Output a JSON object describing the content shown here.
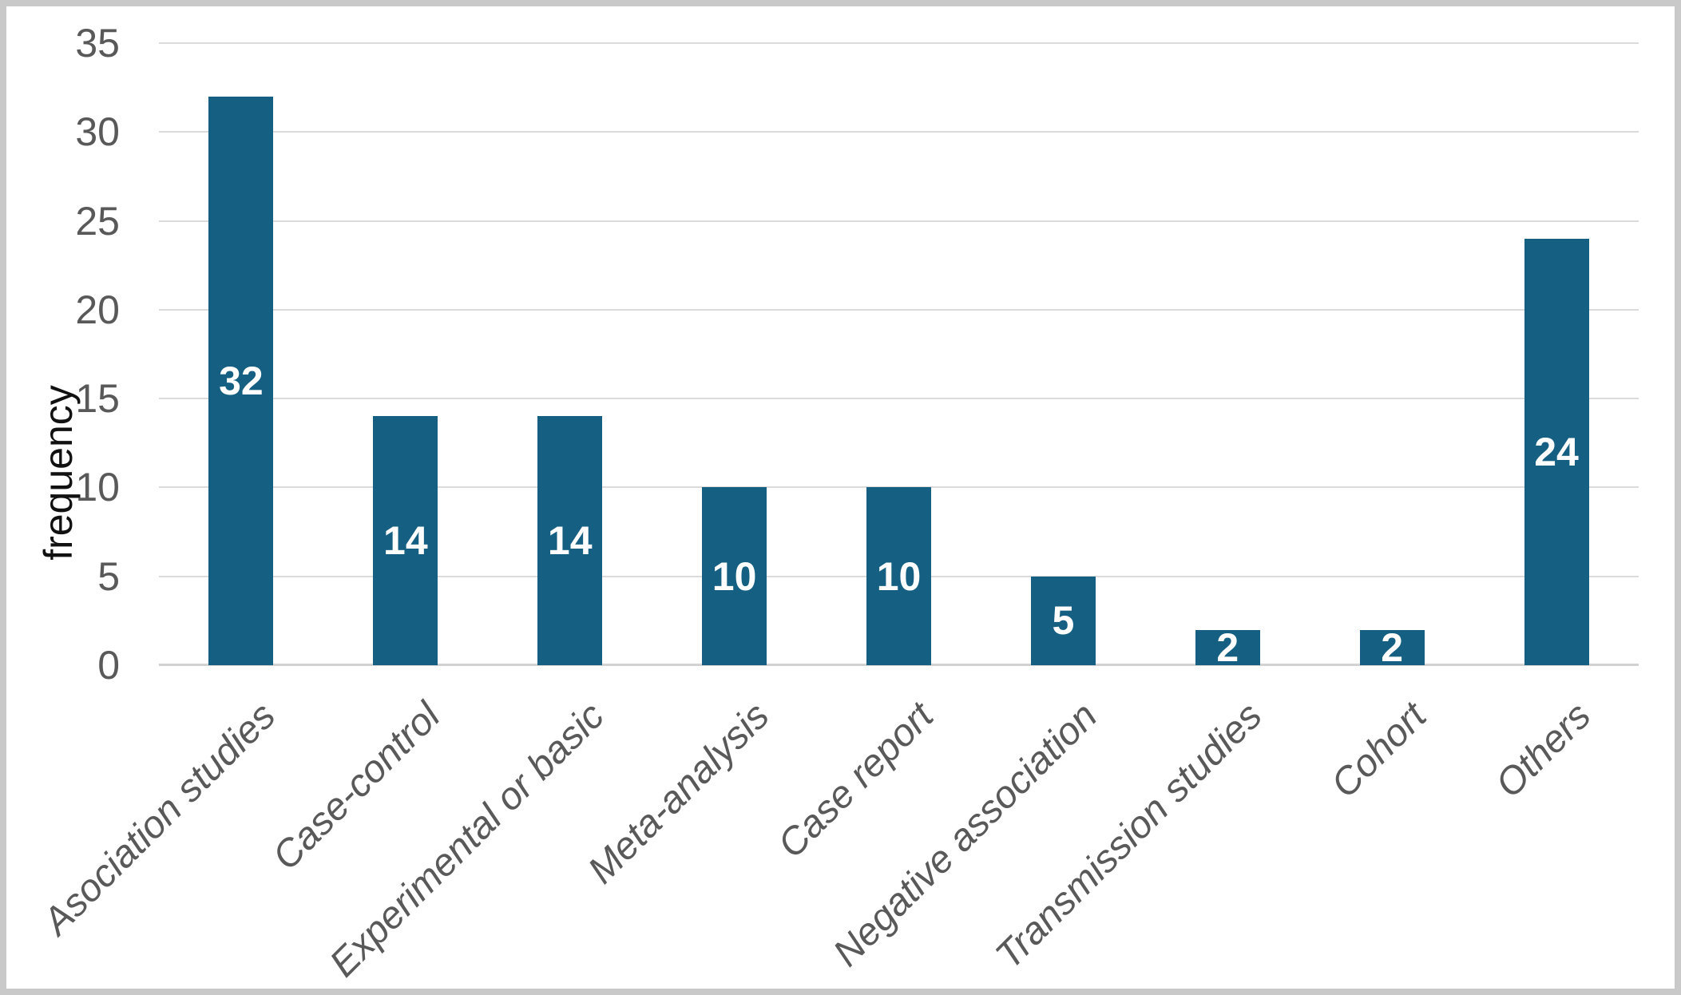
{
  "chart_data": {
    "type": "bar",
    "title": "",
    "categories": [
      "Asociation studies",
      "Case-control",
      "Experimental or basic",
      "Meta-analysis",
      "Case report",
      "Negative association",
      "Transmission studies",
      "Cohort",
      "Others"
    ],
    "values": [
      32,
      14,
      14,
      10,
      10,
      5,
      2,
      2,
      24
    ],
    "xlabel": "",
    "ylabel": "frequency",
    "ylim": [
      0,
      35
    ],
    "yticks": [
      0,
      5,
      10,
      15,
      20,
      25,
      30,
      35
    ],
    "grid": "horizontal gridlines on",
    "legend_position": "none",
    "data_labels": "centered inside bars",
    "colors": {
      "bar": "#156082",
      "data_label": "#ffffff",
      "tick_label": "#595959",
      "category_label": "#595959",
      "axis_title": "#111111",
      "gridline": "#dbdbdb",
      "axis_line": "#d2d2d2",
      "chart_border": "#c9c9c9",
      "background": "#ffffff"
    }
  }
}
